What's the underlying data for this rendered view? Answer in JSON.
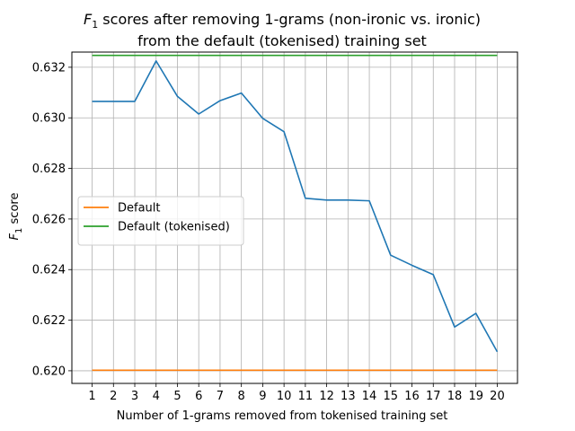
{
  "chart_data": {
    "type": "line",
    "title": {
      "line1_sym": "F",
      "line1_sub": "1",
      "line1_rest": " scores after removing 1-grams (non-ironic vs. ironic)",
      "line2": "from the default (tokenised) training set"
    },
    "xlabel": "Number of 1-grams removed from tokenised training set",
    "ylabel": {
      "sym": "F",
      "sub": "1",
      "rest": " score"
    },
    "x": [
      1,
      2,
      3,
      4,
      5,
      6,
      7,
      8,
      9,
      10,
      11,
      12,
      13,
      14,
      15,
      16,
      17,
      18,
      19,
      20
    ],
    "xlim": [
      0.05,
      20.95
    ],
    "ylim": [
      0.6195,
      0.6326
    ],
    "yticks": [
      "0.620",
      "0.622",
      "0.624",
      "0.626",
      "0.628",
      "0.630",
      "0.632"
    ],
    "grid": true,
    "legend": {
      "position": "center-left"
    },
    "series": [
      {
        "color": "#1f77b4",
        "values": [
          0.63065,
          0.63065,
          0.63065,
          0.63225,
          0.63085,
          0.63015,
          0.63068,
          0.63098,
          0.62998,
          0.62945,
          0.62682,
          0.62675,
          0.62675,
          0.62672,
          0.62457,
          0.62417,
          0.6238,
          0.62173,
          0.62227,
          0.62075
        ],
        "in_legend": false
      },
      {
        "name": "Default",
        "color": "#ff7f0e",
        "values": [
          0.62002,
          0.62002,
          0.62002,
          0.62002,
          0.62002,
          0.62002,
          0.62002,
          0.62002,
          0.62002,
          0.62002,
          0.62002,
          0.62002,
          0.62002,
          0.62002,
          0.62002,
          0.62002,
          0.62002,
          0.62002,
          0.62002,
          0.62002
        ],
        "in_legend": true
      },
      {
        "name": "Default (tokenised)",
        "color": "#2ca02c",
        "values": [
          0.63247,
          0.63247,
          0.63247,
          0.63247,
          0.63247,
          0.63247,
          0.63247,
          0.63247,
          0.63247,
          0.63247,
          0.63247,
          0.63247,
          0.63247,
          0.63247,
          0.63247,
          0.63247,
          0.63247,
          0.63247,
          0.63247,
          0.63247
        ],
        "in_legend": true
      }
    ]
  }
}
